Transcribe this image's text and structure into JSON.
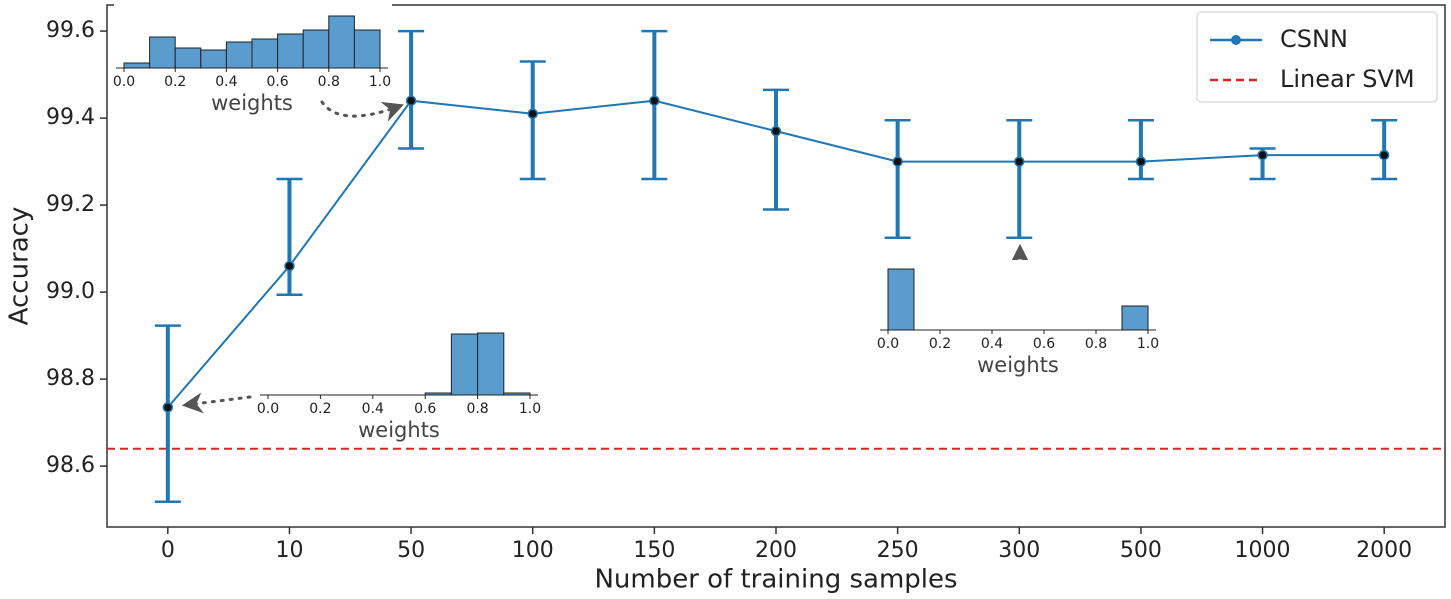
{
  "chart_data": {
    "type": "line",
    "xlabel": "Number of training samples",
    "ylabel": "Accuracy",
    "categories": [
      "0",
      "10",
      "50",
      "100",
      "150",
      "200",
      "250",
      "300",
      "500",
      "1000",
      "2000"
    ],
    "series": [
      {
        "name": "CSNN",
        "color": "#1f77b4",
        "values": [
          98.735,
          99.06,
          99.44,
          99.41,
          99.44,
          99.37,
          99.3,
          99.3,
          99.3,
          99.315,
          99.315
        ],
        "lower": [
          98.518,
          98.994,
          99.33,
          99.26,
          99.26,
          99.19,
          99.125,
          99.125,
          99.26,
          99.26,
          99.26
        ],
        "upper": [
          98.923,
          99.26,
          99.6,
          99.53,
          99.6,
          99.465,
          99.395,
          99.395,
          99.395,
          99.33,
          99.395
        ]
      }
    ],
    "reference_lines": [
      {
        "name": "Linear SVM",
        "value": 98.64,
        "color": "#d62728"
      }
    ],
    "ylim": [
      98.46,
      99.66
    ],
    "yticks": [
      98.6,
      98.8,
      {
        "value": 99,
        "label": "99.0"
      },
      99.2,
      99.4,
      99.6
    ],
    "legend": "upper right",
    "insets": [
      {
        "type": "histogram",
        "xlabel": "weights",
        "color": "#5b9ccf",
        "bins": [
          0,
          0.1,
          0.2,
          0.3,
          0.4,
          0.5,
          0.6,
          0.7,
          0.8,
          0.9,
          1
        ],
        "counts": [
          5,
          31,
          20,
          18,
          26,
          29,
          34,
          38,
          52,
          38
        ],
        "xlim": [
          0,
          1
        ],
        "xticks": [
          {
            "value": 0,
            "label": "0.0"
          },
          0.2,
          0.4,
          0.6,
          0.8,
          {
            "value": 1,
            "label": "1.0"
          }
        ]
      },
      {
        "type": "histogram",
        "xlabel": "weights",
        "color": "#5b9ccf",
        "bins": [
          0,
          0.1,
          0.2,
          0.3,
          0.4,
          0.5,
          0.6,
          0.7,
          0.8,
          0.9,
          1
        ],
        "counts": [
          0,
          0,
          0,
          0,
          0,
          0,
          2,
          61,
          62,
          2
        ],
        "xlim": [
          0,
          1
        ],
        "xticks": [
          {
            "value": 0,
            "label": "0.0"
          },
          0.2,
          0.4,
          0.6,
          0.8,
          {
            "value": 1,
            "label": "1.0"
          }
        ]
      },
      {
        "type": "histogram",
        "xlabel": "weights",
        "color": "#5b9ccf",
        "bins": [
          0,
          0.1,
          0.2,
          0.3,
          0.4,
          0.5,
          0.6,
          0.7,
          0.8,
          0.9,
          1
        ],
        "counts": [
          61,
          0,
          0,
          0,
          0,
          0,
          0,
          0,
          0,
          24
        ],
        "xlim": [
          0,
          1
        ],
        "xticks": [
          {
            "value": 0,
            "label": "0.0"
          },
          0.2,
          0.4,
          0.6,
          0.8,
          {
            "value": 1,
            "label": "1.0"
          }
        ]
      }
    ]
  }
}
